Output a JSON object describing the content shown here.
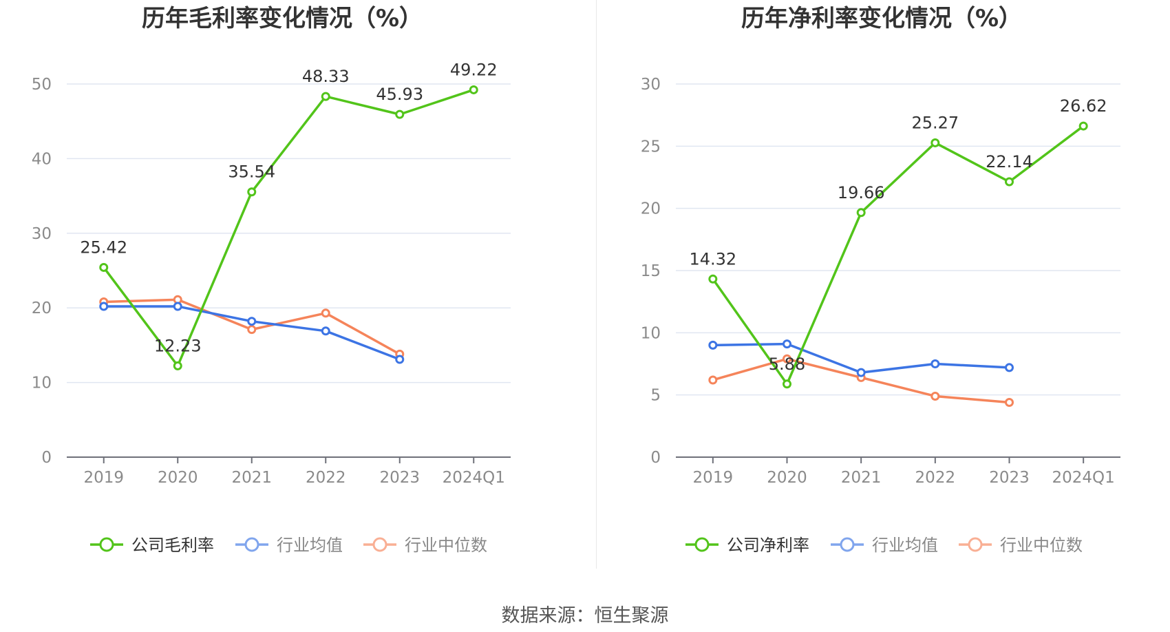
{
  "source_text": "数据来源：恒生聚源",
  "chart_data": [
    {
      "type": "line",
      "title": "历年毛利率变化情况（%）",
      "categories": [
        "2019",
        "2020",
        "2021",
        "2022",
        "2023",
        "2024Q1"
      ],
      "y_ticks": [
        "0",
        "10",
        "20",
        "30",
        "40",
        "50"
      ],
      "ylim": [
        0,
        50
      ],
      "grid": true,
      "legend_position": "bottom",
      "series": [
        {
          "name": "公司毛利率",
          "color": "#52c41a",
          "labeled": true,
          "values": [
            25.42,
            12.23,
            35.54,
            48.33,
            45.93,
            49.22
          ],
          "labels": [
            "25.42",
            "12.23",
            "35.54",
            "48.33",
            "45.93",
            "49.22"
          ]
        },
        {
          "name": "行业均值",
          "color": "#3c74e4",
          "labeled": false,
          "values": [
            20.2,
            20.2,
            18.2,
            16.9,
            13.1,
            null
          ]
        },
        {
          "name": "行业中位数",
          "color": "#f5845a",
          "labeled": false,
          "values": [
            20.8,
            21.1,
            17.1,
            19.3,
            13.8,
            null
          ]
        }
      ]
    },
    {
      "type": "line",
      "title": "历年净利率变化情况（%）",
      "categories": [
        "2019",
        "2020",
        "2021",
        "2022",
        "2023",
        "2024Q1"
      ],
      "y_ticks": [
        "0",
        "5",
        "10",
        "15",
        "20",
        "25",
        "30"
      ],
      "ylim": [
        0,
        30
      ],
      "grid": true,
      "legend_position": "bottom",
      "series": [
        {
          "name": "公司净利率",
          "color": "#52c41a",
          "labeled": true,
          "values": [
            14.32,
            5.88,
            19.66,
            25.27,
            22.14,
            26.62
          ],
          "labels": [
            "14.32",
            "5.88",
            "19.66",
            "25.27",
            "22.14",
            "26.62"
          ]
        },
        {
          "name": "行业均值",
          "color": "#3c74e4",
          "labeled": false,
          "values": [
            9.0,
            9.1,
            6.8,
            7.5,
            7.2,
            null
          ]
        },
        {
          "name": "行业中位数",
          "color": "#f5845a",
          "labeled": false,
          "values": [
            6.2,
            7.9,
            6.4,
            4.9,
            4.4,
            null
          ]
        }
      ]
    }
  ]
}
